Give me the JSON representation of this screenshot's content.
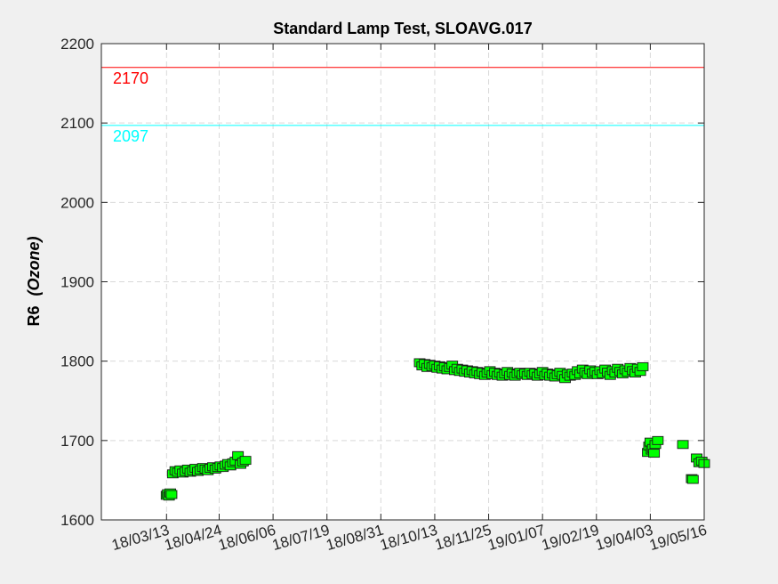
{
  "chart_data": {
    "type": "scatter",
    "title": "Standard Lamp Test, SLOAVG.017",
    "ylabel": "R6",
    "ylabel_suffix": "(Ozone)",
    "xlabel": "",
    "ylim": [
      1600,
      2200
    ],
    "xlim": [
      "2018-01-20",
      "2019-05-16"
    ],
    "grid": true,
    "y_ticks": [
      "1600",
      "1700",
      "1800",
      "1900",
      "2000",
      "2100",
      "2200"
    ],
    "x_ticks": [
      "18/03/13",
      "18/04/24",
      "18/06/06",
      "18/07/19",
      "18/08/31",
      "18/10/13",
      "18/11/25",
      "19/01/07",
      "19/02/19",
      "19/04/03",
      "19/05/16"
    ],
    "reference_lines": [
      {
        "label": "2170",
        "value": 2170,
        "color": "#ff0000"
      },
      {
        "label": "2097",
        "value": 2097,
        "color": "#00ffff"
      }
    ],
    "series": [
      {
        "marker": "square",
        "color": "#00ff00",
        "points": [
          [
            "2018-03-13",
            1631
          ],
          [
            "2018-03-14",
            1633
          ],
          [
            "2018-03-15",
            1630
          ],
          [
            "2018-03-16",
            1634
          ],
          [
            "2018-03-17",
            1632
          ],
          [
            "2018-03-18",
            1658
          ],
          [
            "2018-03-20",
            1662
          ],
          [
            "2018-03-22",
            1660
          ],
          [
            "2018-03-24",
            1663
          ],
          [
            "2018-03-26",
            1659
          ],
          [
            "2018-03-28",
            1661
          ],
          [
            "2018-03-30",
            1664
          ],
          [
            "2018-04-01",
            1660
          ],
          [
            "2018-04-03",
            1662
          ],
          [
            "2018-04-05",
            1665
          ],
          [
            "2018-04-07",
            1661
          ],
          [
            "2018-04-09",
            1663
          ],
          [
            "2018-04-11",
            1666
          ],
          [
            "2018-04-13",
            1664
          ],
          [
            "2018-04-15",
            1662
          ],
          [
            "2018-04-17",
            1665
          ],
          [
            "2018-04-19",
            1667
          ],
          [
            "2018-04-21",
            1664
          ],
          [
            "2018-04-23",
            1666
          ],
          [
            "2018-04-25",
            1668
          ],
          [
            "2018-04-27",
            1666
          ],
          [
            "2018-04-29",
            1669
          ],
          [
            "2018-05-01",
            1671
          ],
          [
            "2018-05-03",
            1668
          ],
          [
            "2018-05-05",
            1672
          ],
          [
            "2018-05-07",
            1674
          ],
          [
            "2018-05-09",
            1681
          ],
          [
            "2018-05-11",
            1670
          ],
          [
            "2018-05-13",
            1673
          ],
          [
            "2018-05-15",
            1675
          ],
          [
            "2018-10-01",
            1798
          ],
          [
            "2018-10-03",
            1794
          ],
          [
            "2018-10-05",
            1797
          ],
          [
            "2018-10-07",
            1792
          ],
          [
            "2018-10-09",
            1796
          ],
          [
            "2018-10-11",
            1793
          ],
          [
            "2018-10-13",
            1795
          ],
          [
            "2018-10-15",
            1791
          ],
          [
            "2018-10-17",
            1794
          ],
          [
            "2018-10-19",
            1790
          ],
          [
            "2018-10-21",
            1793
          ],
          [
            "2018-10-23",
            1789
          ],
          [
            "2018-10-25",
            1792
          ],
          [
            "2018-10-27",
            1795
          ],
          [
            "2018-10-29",
            1788
          ],
          [
            "2018-10-31",
            1791
          ],
          [
            "2018-11-02",
            1787
          ],
          [
            "2018-11-04",
            1790
          ],
          [
            "2018-11-06",
            1786
          ],
          [
            "2018-11-08",
            1789
          ],
          [
            "2018-11-10",
            1785
          ],
          [
            "2018-11-12",
            1788
          ],
          [
            "2018-11-14",
            1784
          ],
          [
            "2018-11-16",
            1787
          ],
          [
            "2018-11-18",
            1783
          ],
          [
            "2018-11-20",
            1786
          ],
          [
            "2018-11-22",
            1782
          ],
          [
            "2018-11-24",
            1785
          ],
          [
            "2018-11-26",
            1788
          ],
          [
            "2018-11-28",
            1783
          ],
          [
            "2018-11-30",
            1786
          ],
          [
            "2018-12-02",
            1782
          ],
          [
            "2018-12-04",
            1785
          ],
          [
            "2018-12-06",
            1781
          ],
          [
            "2018-12-08",
            1784
          ],
          [
            "2018-12-10",
            1787
          ],
          [
            "2018-12-12",
            1782
          ],
          [
            "2018-12-14",
            1785
          ],
          [
            "2018-12-16",
            1781
          ],
          [
            "2018-12-18",
            1784
          ],
          [
            "2018-12-20",
            1786
          ],
          [
            "2018-12-22",
            1783
          ],
          [
            "2018-12-24",
            1785
          ],
          [
            "2018-12-26",
            1782
          ],
          [
            "2018-12-28",
            1786
          ],
          [
            "2018-12-30",
            1783
          ],
          [
            "2019-01-01",
            1785
          ],
          [
            "2019-01-03",
            1781
          ],
          [
            "2019-01-05",
            1784
          ],
          [
            "2019-01-07",
            1787
          ],
          [
            "2019-01-09",
            1782
          ],
          [
            "2019-01-11",
            1785
          ],
          [
            "2019-01-13",
            1781
          ],
          [
            "2019-01-15",
            1784
          ],
          [
            "2019-01-17",
            1780
          ],
          [
            "2019-01-19",
            1783
          ],
          [
            "2019-01-21",
            1786
          ],
          [
            "2019-01-23",
            1782
          ],
          [
            "2019-01-25",
            1778
          ],
          [
            "2019-01-27",
            1784
          ],
          [
            "2019-01-29",
            1781
          ],
          [
            "2019-01-31",
            1785
          ],
          [
            "2019-02-02",
            1782
          ],
          [
            "2019-02-04",
            1788
          ],
          [
            "2019-02-06",
            1784
          ],
          [
            "2019-02-08",
            1790
          ],
          [
            "2019-02-10",
            1786
          ],
          [
            "2019-02-12",
            1783
          ],
          [
            "2019-02-14",
            1789
          ],
          [
            "2019-02-16",
            1785
          ],
          [
            "2019-02-18",
            1787
          ],
          [
            "2019-02-20",
            1783
          ],
          [
            "2019-02-22",
            1788
          ],
          [
            "2019-02-24",
            1784
          ],
          [
            "2019-02-26",
            1790
          ],
          [
            "2019-02-28",
            1786
          ],
          [
            "2019-03-02",
            1782
          ],
          [
            "2019-03-04",
            1788
          ],
          [
            "2019-03-06",
            1785
          ],
          [
            "2019-03-08",
            1791
          ],
          [
            "2019-03-10",
            1787
          ],
          [
            "2019-03-12",
            1784
          ],
          [
            "2019-03-14",
            1789
          ],
          [
            "2019-03-16",
            1786
          ],
          [
            "2019-03-18",
            1792
          ],
          [
            "2019-03-20",
            1788
          ],
          [
            "2019-03-22",
            1785
          ],
          [
            "2019-03-24",
            1791
          ],
          [
            "2019-03-26",
            1787
          ],
          [
            "2019-03-28",
            1793
          ],
          [
            "2019-04-01",
            1685
          ],
          [
            "2019-04-02",
            1693
          ],
          [
            "2019-04-03",
            1698
          ],
          [
            "2019-04-04",
            1688
          ],
          [
            "2019-04-05",
            1690
          ],
          [
            "2019-04-06",
            1684
          ],
          [
            "2019-04-07",
            1695
          ],
          [
            "2019-04-09",
            1700
          ],
          [
            "2019-04-29",
            1695
          ],
          [
            "2019-05-06",
            1652
          ],
          [
            "2019-05-07",
            1651
          ],
          [
            "2019-05-10",
            1678
          ],
          [
            "2019-05-12",
            1672
          ],
          [
            "2019-05-14",
            1674
          ],
          [
            "2019-05-16",
            1671
          ]
        ]
      }
    ]
  }
}
